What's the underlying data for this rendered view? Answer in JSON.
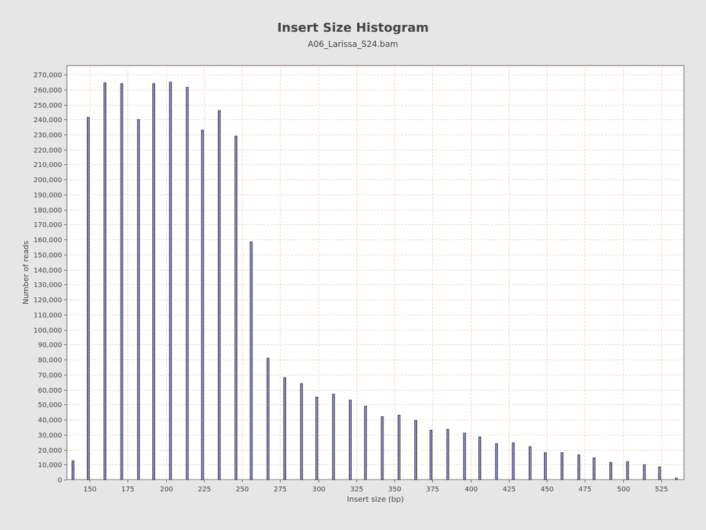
{
  "chart_data": {
    "type": "bar",
    "title": "Insert Size Histogram",
    "subtitle": "A06_Larissa_S24.bam",
    "xlabel": "Insert size (bp)",
    "ylabel": "Number of reads",
    "xlim": [
      135,
      540
    ],
    "ylim": [
      0,
      276000
    ],
    "xticks": [
      150,
      175,
      200,
      225,
      250,
      275,
      300,
      325,
      350,
      375,
      400,
      425,
      450,
      475,
      500,
      525
    ],
    "yticks": [
      0,
      10000,
      20000,
      30000,
      40000,
      50000,
      60000,
      70000,
      80000,
      90000,
      100000,
      110000,
      120000,
      130000,
      140000,
      150000,
      160000,
      170000,
      180000,
      190000,
      200000,
      210000,
      220000,
      230000,
      240000,
      250000,
      260000,
      270000
    ],
    "grid": true,
    "x": [
      139,
      149,
      160,
      171,
      182,
      192,
      203,
      214,
      224,
      235,
      246,
      256,
      267,
      278,
      289,
      299,
      310,
      321,
      331,
      342,
      353,
      364,
      374,
      385,
      396,
      406,
      417,
      428,
      439,
      449,
      460,
      471,
      481,
      492,
      503,
      514,
      524,
      535
    ],
    "values": [
      12500,
      241500,
      264500,
      264000,
      240000,
      264000,
      265000,
      261500,
      233000,
      246000,
      229000,
      158500,
      81000,
      68000,
      64000,
      55000,
      57000,
      53000,
      49000,
      42000,
      43000,
      39500,
      33000,
      33500,
      31000,
      28500,
      24000,
      24500,
      22000,
      18000,
      18000,
      16500,
      14500,
      11500,
      12000,
      10000,
      8500,
      1000
    ],
    "colors": {
      "background": "#e6e6e6",
      "plot_background": "#ffffff",
      "gridline": "#f0c9b3",
      "bar_fill": "#8b8bd1",
      "bar_stroke": "#333333",
      "axis": "#666666",
      "text": "#444444"
    }
  }
}
